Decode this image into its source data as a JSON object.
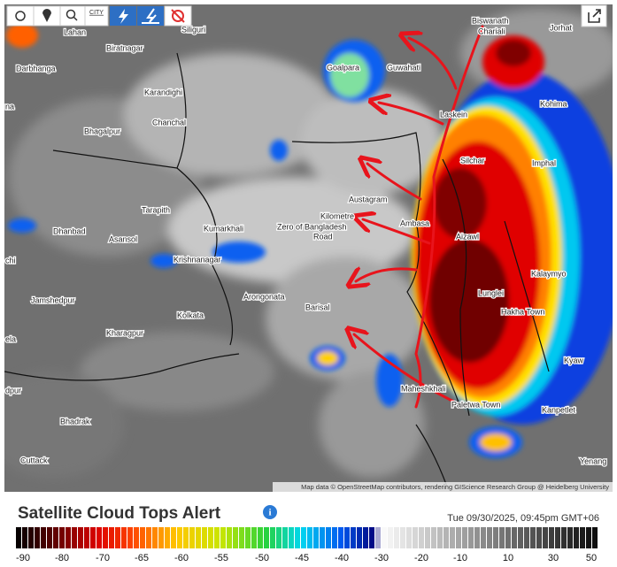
{
  "toolbar": {
    "city_button": "CITY"
  },
  "map": {
    "places": [
      "Biswanath",
      "Chariali",
      "Jorhat",
      "Lahan",
      "Siliguri",
      "Biratnagar",
      "Goalpara",
      "Guwahati",
      "Darbhanga",
      "Karandighi",
      "Kohima",
      "Chanchal",
      "Laskein",
      "Bhagalpur",
      "Silchar",
      "Imphal",
      "Austagram",
      "Tarapith",
      "Kilometre",
      "Zero of Bangladesh",
      "Ambasa",
      "Aizawl",
      "Dhanbad",
      "Asansol",
      "Kumarkhali",
      "Road",
      "Krishnanagar",
      "Kalaymyo",
      "Lunglei",
      "Arongonata",
      "Jamshedpur",
      "Barisal",
      "Hakha Town",
      "Kolkata",
      "Kharagpur",
      "Maheshkhali",
      "Paletwa Town",
      "Kanpetlet",
      "Kyaw",
      "Bhadrak",
      "Cuttack",
      "Yenang",
      "na",
      "chi",
      "ela",
      "dpur"
    ],
    "attribution": "Map data © OpenStreetMap contributors, rendering GIScience Research Group @ Heidelberg University"
  },
  "alert": {
    "title": "Satellite Cloud Tops Alert",
    "timestamp": "Tue 09/30/2025, 09:45pm GMT+06"
  },
  "color_scale": {
    "ticks": [
      -90,
      -80,
      -70,
      -65,
      -60,
      -55,
      -50,
      -45,
      -40,
      -30,
      -20,
      -10,
      10,
      30,
      50
    ]
  }
}
